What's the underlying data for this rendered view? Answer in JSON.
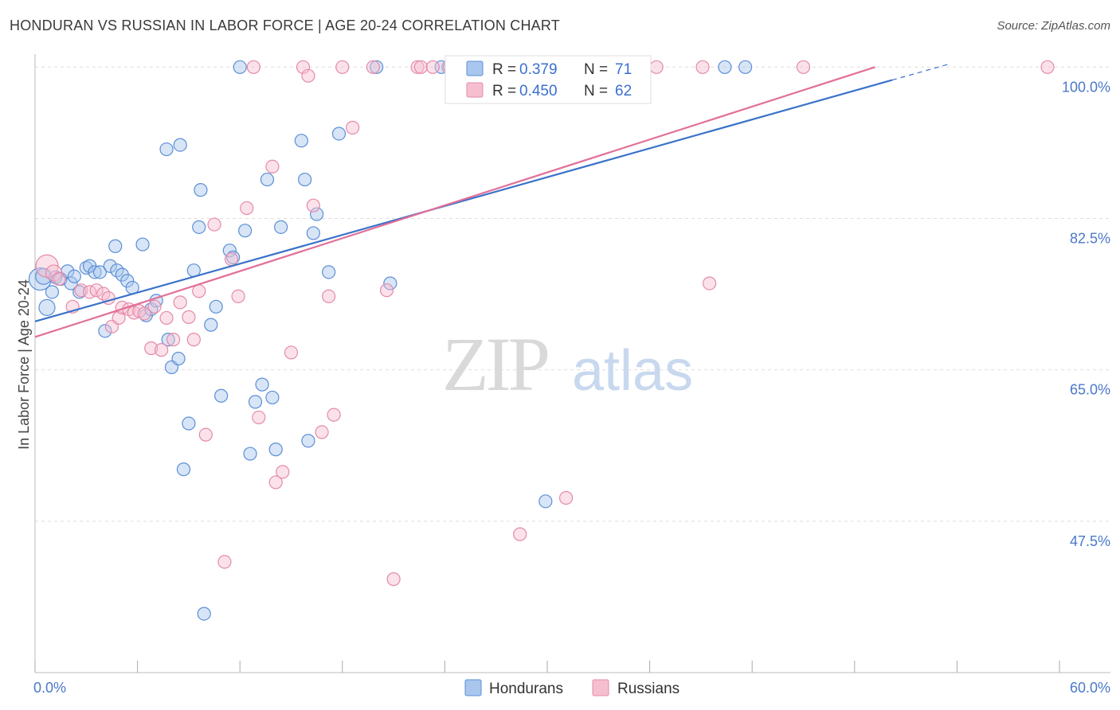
{
  "header": {
    "title": "HONDURAN VS RUSSIAN IN LABOR FORCE | AGE 20-24 CORRELATION CHART",
    "source": "Source: ZipAtlas.com"
  },
  "colors": {
    "honduran_fill": "#a9c6ee",
    "honduran_stroke": "#5b8fd6",
    "honduran_line": "#3a72c8",
    "russian_fill": "#f6bfd0",
    "russian_stroke": "#e48aa8",
    "russian_line": "#e26f98",
    "tick_label": "#4a78c8",
    "grid": "#dddddd"
  },
  "chart_data": {
    "type": "scatter",
    "title": "HONDURAN VS RUSSIAN IN LABOR FORCE | AGE 20-24 CORRELATION CHART",
    "xlabel": "",
    "ylabel": "In Labor Force | Age 20-24",
    "xlim": [
      0,
      60
    ],
    "ylim": [
      30,
      101.5
    ],
    "x_tick_labels": [
      "0.0%",
      "60.0%"
    ],
    "y_ticks": [
      47.5,
      65.0,
      82.5,
      100.0
    ],
    "y_tick_labels": [
      "47.5%",
      "65.0%",
      "82.5%",
      "100.0%"
    ],
    "grid": true,
    "legend_position": "top-center",
    "watermark": "ZIPatlas",
    "series": [
      {
        "name": "Hondurans",
        "R": "0.379",
        "N": "71",
        "trend": {
          "x0": 0,
          "y0": 70.6,
          "x1": 50.2,
          "y1": 98.5,
          "dash_to_x": 53.5
        },
        "points": [
          [
            0.3,
            75.5,
            14
          ],
          [
            0.5,
            75.8,
            10
          ],
          [
            0.7,
            72.2,
            10
          ],
          [
            1.0,
            74.0,
            8
          ],
          [
            1.2,
            75.7,
            8
          ],
          [
            1.5,
            75.5,
            8
          ],
          [
            1.9,
            76.4,
            8
          ],
          [
            2.1,
            75.0,
            8
          ],
          [
            2.3,
            75.8,
            8
          ],
          [
            2.6,
            74.0,
            8
          ],
          [
            3.0,
            76.8,
            8
          ],
          [
            3.2,
            77.0,
            8
          ],
          [
            3.5,
            76.3,
            8
          ],
          [
            3.8,
            76.3,
            8
          ],
          [
            4.1,
            69.5,
            8
          ],
          [
            4.4,
            77.0,
            8
          ],
          [
            4.8,
            76.5,
            8
          ],
          [
            5.1,
            76.0,
            8
          ],
          [
            5.4,
            75.3,
            8
          ],
          [
            5.7,
            74.5,
            8
          ],
          [
            4.7,
            79.3,
            8
          ],
          [
            6.3,
            79.5,
            8
          ],
          [
            6.5,
            71.3,
            8
          ],
          [
            6.8,
            72.0,
            8
          ],
          [
            7.1,
            73.0,
            8
          ],
          [
            7.7,
            90.5,
            8
          ],
          [
            7.8,
            68.5,
            8
          ],
          [
            8.0,
            65.3,
            8
          ],
          [
            8.4,
            66.3,
            8
          ],
          [
            8.5,
            91.0,
            8
          ],
          [
            8.7,
            53.5,
            8
          ],
          [
            9.0,
            58.8,
            8
          ],
          [
            9.3,
            76.5,
            8
          ],
          [
            9.6,
            81.5,
            8
          ],
          [
            9.7,
            85.8,
            8
          ],
          [
            9.9,
            36.8,
            8
          ],
          [
            10.3,
            70.2,
            8
          ],
          [
            10.6,
            72.3,
            8
          ],
          [
            10.9,
            62.0,
            8
          ],
          [
            11.4,
            78.8,
            8
          ],
          [
            11.6,
            78.0,
            8
          ],
          [
            12.0,
            100.0,
            8
          ],
          [
            12.3,
            81.1,
            8
          ],
          [
            12.6,
            55.3,
            8
          ],
          [
            12.9,
            61.3,
            8
          ],
          [
            13.3,
            63.3,
            8
          ],
          [
            13.6,
            87.0,
            8
          ],
          [
            13.9,
            61.8,
            8
          ],
          [
            14.1,
            55.8,
            8
          ],
          [
            14.4,
            81.5,
            8
          ],
          [
            15.6,
            91.5,
            8
          ],
          [
            15.8,
            87.0,
            8
          ],
          [
            16.0,
            56.8,
            8
          ],
          [
            16.3,
            80.8,
            8
          ],
          [
            16.5,
            83.0,
            8
          ],
          [
            17.2,
            76.3,
            8
          ],
          [
            17.8,
            92.3,
            8
          ],
          [
            20.0,
            100.0,
            8
          ],
          [
            20.8,
            75.0,
            8
          ],
          [
            23.8,
            100.0,
            8
          ],
          [
            24.3,
            100.0,
            8
          ],
          [
            24.7,
            100.0,
            8
          ],
          [
            25.0,
            98.5,
            8
          ],
          [
            25.6,
            100.0,
            8
          ],
          [
            26.2,
            100.0,
            8
          ],
          [
            26.9,
            100.0,
            8
          ],
          [
            27.7,
            100.0,
            8
          ],
          [
            28.1,
            100.0,
            8
          ],
          [
            29.9,
            49.8,
            8
          ],
          [
            40.4,
            100.0,
            8
          ],
          [
            41.6,
            100.0,
            8
          ]
        ]
      },
      {
        "name": "Russians",
        "R": "0.450",
        "N": "62",
        "trend": {
          "x0": 0,
          "y0": 68.8,
          "x1": 49.2,
          "y1": 100.0
        },
        "points": [
          [
            0.7,
            77.0,
            14
          ],
          [
            1.1,
            76.2,
            10
          ],
          [
            1.4,
            75.5,
            8
          ],
          [
            2.2,
            72.3,
            8
          ],
          [
            2.7,
            74.2,
            8
          ],
          [
            3.2,
            74.0,
            8
          ],
          [
            3.6,
            74.2,
            8
          ],
          [
            4.0,
            73.8,
            8
          ],
          [
            4.3,
            73.3,
            8
          ],
          [
            4.5,
            70.0,
            8
          ],
          [
            4.9,
            71.0,
            8
          ],
          [
            5.1,
            72.2,
            8
          ],
          [
            5.5,
            72.0,
            8
          ],
          [
            5.8,
            71.6,
            8
          ],
          [
            6.1,
            71.8,
            8
          ],
          [
            6.4,
            71.5,
            8
          ],
          [
            6.8,
            67.5,
            8
          ],
          [
            7.0,
            72.3,
            8
          ],
          [
            7.4,
            67.3,
            8
          ],
          [
            7.7,
            71.0,
            8
          ],
          [
            8.1,
            68.5,
            8
          ],
          [
            8.5,
            72.8,
            8
          ],
          [
            9.0,
            71.1,
            8
          ],
          [
            9.3,
            68.5,
            8
          ],
          [
            9.6,
            74.1,
            8
          ],
          [
            10.0,
            57.5,
            8
          ],
          [
            10.5,
            81.8,
            8
          ],
          [
            11.1,
            42.8,
            8
          ],
          [
            11.5,
            77.8,
            8
          ],
          [
            11.9,
            73.5,
            8
          ],
          [
            12.4,
            83.7,
            8
          ],
          [
            12.8,
            100.0,
            8
          ],
          [
            13.1,
            59.5,
            8
          ],
          [
            13.9,
            88.5,
            8
          ],
          [
            14.1,
            52.0,
            8
          ],
          [
            14.5,
            53.2,
            8
          ],
          [
            15.0,
            67.0,
            8
          ],
          [
            15.7,
            100.0,
            8
          ],
          [
            16.0,
            99.0,
            8
          ],
          [
            16.3,
            84.0,
            8
          ],
          [
            16.8,
            57.8,
            8
          ],
          [
            17.2,
            73.5,
            8
          ],
          [
            17.5,
            59.8,
            8
          ],
          [
            18.0,
            100.0,
            8
          ],
          [
            18.6,
            93.0,
            8
          ],
          [
            19.8,
            100.0,
            8
          ],
          [
            20.6,
            74.2,
            8
          ],
          [
            21.0,
            40.8,
            8
          ],
          [
            22.4,
            100.0,
            8
          ],
          [
            22.6,
            100.0,
            8
          ],
          [
            23.3,
            100.0,
            8
          ],
          [
            24.2,
            100.0,
            8
          ],
          [
            26.0,
            100.0,
            8
          ],
          [
            26.4,
            100.0,
            8
          ],
          [
            28.4,
            46.0,
            8
          ],
          [
            31.1,
            50.2,
            8
          ],
          [
            33.5,
            100.0,
            8
          ],
          [
            36.4,
            100.0,
            8
          ],
          [
            39.1,
            100.0,
            8
          ],
          [
            39.5,
            75.0,
            8
          ],
          [
            45.0,
            100.0,
            8
          ],
          [
            59.3,
            100.0,
            8
          ]
        ]
      }
    ]
  }
}
